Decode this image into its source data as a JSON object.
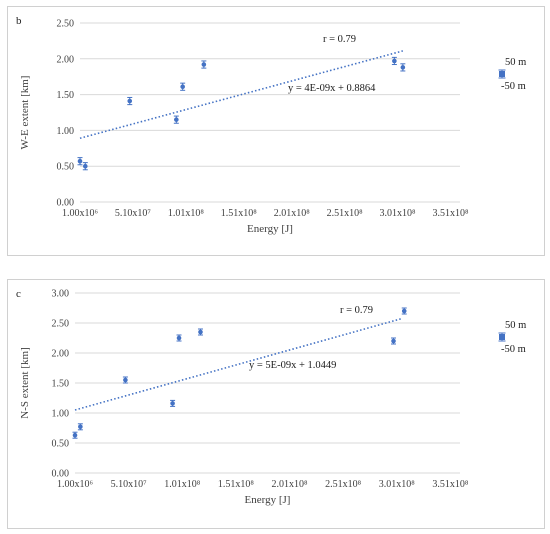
{
  "chart_data": [
    {
      "type": "scatter",
      "panel_label": "b",
      "xlabel": "Energy [J]",
      "ylabel": "W-E extent [km]",
      "xlim": [
        1000000,
        360000000
      ],
      "ylim": [
        0,
        2.5
      ],
      "x_tick_labels": [
        "1.00x10⁶",
        "5.10x10⁷",
        "1.01x10⁸",
        "1.51x10⁸",
        "2.01x10⁸",
        "2.51x10⁸",
        "3.01x10⁸",
        "3.51x10⁸"
      ],
      "y_tick_labels": [
        "0.00",
        "0.50",
        "1.00",
        "1.50",
        "2.00",
        "2.50"
      ],
      "x_ticks": [
        1000000,
        51000000,
        101000000,
        151000000,
        201000000,
        251000000,
        301000000,
        351000000
      ],
      "y_ticks": [
        0,
        0.5,
        1.0,
        1.5,
        2.0,
        2.5
      ],
      "points": [
        {
          "x": 1000000,
          "y": 0.57
        },
        {
          "x": 6000000,
          "y": 0.5
        },
        {
          "x": 48000000,
          "y": 1.41
        },
        {
          "x": 92000000,
          "y": 1.15
        },
        {
          "x": 98000000,
          "y": 1.61
        },
        {
          "x": 118000000,
          "y": 1.92
        },
        {
          "x": 298000000,
          "y": 1.97
        },
        {
          "x": 306000000,
          "y": 1.88
        }
      ],
      "error": 0.05,
      "trendline": {
        "slope": 4e-09,
        "intercept": 0.8864,
        "x_range": [
          1000000,
          306000000
        ]
      },
      "equation_label": "y = 4E-09x + 0.8864",
      "r_label": "r = 0.79",
      "legend": {
        "upper": "50 m",
        "lower": "-50 m"
      },
      "color": "#4472c4"
    },
    {
      "type": "scatter",
      "panel_label": "c",
      "xlabel": "Energy [J]",
      "ylabel": "N-S extent [km]",
      "xlim": [
        1000000,
        360000000
      ],
      "ylim": [
        0,
        3.0
      ],
      "x_tick_labels": [
        "1.00x10⁶",
        "5.10x10⁷",
        "1.01x10⁸",
        "1.51x10⁸",
        "2.01x10⁸",
        "2.51x10⁸",
        "3.01x10⁸",
        "3.51x10⁸"
      ],
      "y_tick_labels": [
        "0.00",
        "0.50",
        "1.00",
        "1.50",
        "2.00",
        "2.50",
        "3.00"
      ],
      "x_ticks": [
        1000000,
        51000000,
        101000000,
        151000000,
        201000000,
        251000000,
        301000000,
        351000000
      ],
      "y_ticks": [
        0,
        0.5,
        1.0,
        1.5,
        2.0,
        2.5,
        3.0
      ],
      "points": [
        {
          "x": 1000000,
          "y": 0.63
        },
        {
          "x": 6000000,
          "y": 0.77
        },
        {
          "x": 48000000,
          "y": 1.55
        },
        {
          "x": 92000000,
          "y": 1.16
        },
        {
          "x": 98000000,
          "y": 2.25
        },
        {
          "x": 118000000,
          "y": 2.35
        },
        {
          "x": 298000000,
          "y": 2.2
        },
        {
          "x": 308000000,
          "y": 2.7
        }
      ],
      "error": 0.05,
      "trendline": {
        "slope": 5e-09,
        "intercept": 1.0449,
        "x_range": [
          1000000,
          306000000
        ]
      },
      "equation_label": "y = 5E-09x + 1.0449",
      "r_label": "r = 0.79",
      "legend": {
        "upper": "50 m",
        "lower": "-50 m"
      },
      "color": "#4472c4"
    }
  ]
}
